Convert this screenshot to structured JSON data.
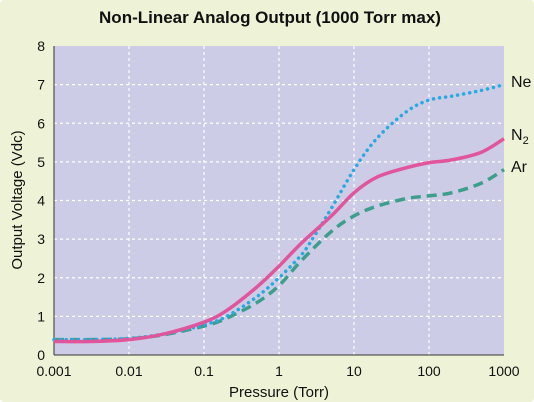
{
  "chart_data": {
    "type": "line",
    "title": "Non-Linear Analog Output (1000 Torr max)",
    "xlabel": "Pressure (Torr)",
    "ylabel": "Output Voltage (Vdc)",
    "x_scale": "log",
    "xlim": [
      0.001,
      1000
    ],
    "ylim": [
      0,
      8
    ],
    "x_ticks": [
      0.001,
      0.01,
      0.1,
      1,
      10,
      100,
      1000
    ],
    "x_tick_labels": [
      "0.001",
      "0.01",
      "0.1",
      "1",
      "10",
      "100",
      "1000"
    ],
    "y_ticks": [
      0,
      1,
      2,
      3,
      4,
      5,
      6,
      7,
      8
    ],
    "y_tick_labels": [
      "0",
      "1",
      "2",
      "3",
      "4",
      "5",
      "6",
      "7",
      "8"
    ],
    "grid": true,
    "legend_placement": "right, at line ends",
    "plot_background": "#cccce6",
    "series": [
      {
        "name": "Ne",
        "color": "#2aa9e0",
        "style": "dotted",
        "points": [
          [
            0.001,
            0.4
          ],
          [
            0.003,
            0.4
          ],
          [
            0.01,
            0.43
          ],
          [
            0.03,
            0.55
          ],
          [
            0.1,
            0.78
          ],
          [
            0.2,
            1.0
          ],
          [
            0.5,
            1.5
          ],
          [
            1,
            2.0
          ],
          [
            2,
            2.6
          ],
          [
            3,
            3.1
          ],
          [
            5,
            3.8
          ],
          [
            10,
            4.8
          ],
          [
            20,
            5.6
          ],
          [
            50,
            6.3
          ],
          [
            100,
            6.6
          ],
          [
            200,
            6.7
          ],
          [
            500,
            6.85
          ],
          [
            1000,
            7.0
          ]
        ]
      },
      {
        "name": "N",
        "name_subscript": "2",
        "color": "#e0559b",
        "style": "solid",
        "points": [
          [
            0.001,
            0.35
          ],
          [
            0.003,
            0.35
          ],
          [
            0.01,
            0.4
          ],
          [
            0.03,
            0.55
          ],
          [
            0.1,
            0.85
          ],
          [
            0.2,
            1.15
          ],
          [
            0.5,
            1.75
          ],
          [
            1,
            2.3
          ],
          [
            2,
            2.9
          ],
          [
            5,
            3.6
          ],
          [
            10,
            4.2
          ],
          [
            20,
            4.6
          ],
          [
            50,
            4.85
          ],
          [
            100,
            4.98
          ],
          [
            200,
            5.05
          ],
          [
            500,
            5.25
          ],
          [
            1000,
            5.6
          ]
        ]
      },
      {
        "name": "Ar",
        "color": "#3e9e8c",
        "style": "dashed",
        "points": [
          [
            0.001,
            0.4
          ],
          [
            0.003,
            0.4
          ],
          [
            0.01,
            0.42
          ],
          [
            0.03,
            0.53
          ],
          [
            0.1,
            0.75
          ],
          [
            0.2,
            0.95
          ],
          [
            0.5,
            1.35
          ],
          [
            1,
            1.8
          ],
          [
            2,
            2.45
          ],
          [
            5,
            3.2
          ],
          [
            10,
            3.6
          ],
          [
            20,
            3.85
          ],
          [
            50,
            4.05
          ],
          [
            100,
            4.12
          ],
          [
            200,
            4.2
          ],
          [
            500,
            4.45
          ],
          [
            1000,
            4.8
          ]
        ]
      }
    ]
  }
}
